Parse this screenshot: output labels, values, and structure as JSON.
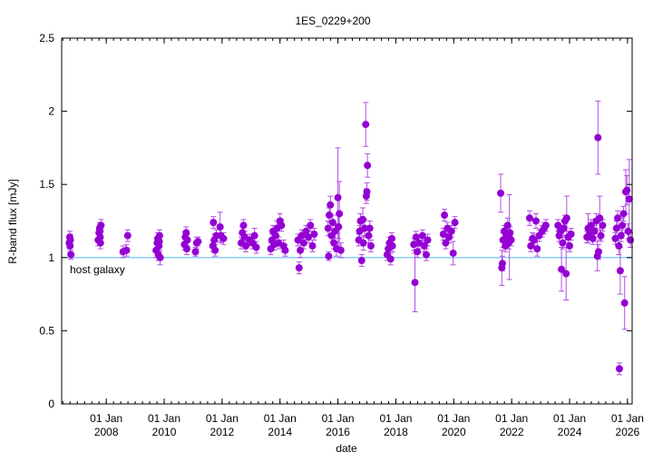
{
  "chart_data": {
    "type": "scatter",
    "title": "1ES_0229+200",
    "xlabel": "date",
    "ylabel": "R-band flux [mJy]",
    "xlim": [
      2006.46,
      2026.16
    ],
    "ylim": [
      0,
      2.5
    ],
    "yticks": [
      0,
      0.5,
      1,
      1.5,
      2,
      2.5
    ],
    "ytick_labels": [
      "0",
      "0.5",
      "1",
      "1.5",
      "2",
      "2.5"
    ],
    "xticks": [
      2008,
      2010,
      2012,
      2014,
      2016,
      2018,
      2020,
      2022,
      2024,
      2026
    ],
    "xtick_labels_top": [
      "01 Jan",
      "01 Jan",
      "01 Jan",
      "01 Jan",
      "01 Jan",
      "01 Jan",
      "01 Jan",
      "01 Jan",
      "01 Jan",
      "01 Jan"
    ],
    "xtick_labels_bottom": [
      "2008",
      "2010",
      "2012",
      "2014",
      "2016",
      "2018",
      "2020",
      "2022",
      "2024",
      "2026"
    ],
    "grid": false,
    "reference_line": {
      "label": "host galaxy",
      "value": 1.0,
      "color": "#87cefa"
    },
    "marker_color": "#9400d3",
    "errorbar_color": "#b44ee6",
    "points_note": "[year, flux_mJy, error_mJy]",
    "points": [
      [
        2006.72,
        1.1,
        0.04
      ],
      [
        2006.74,
        1.14,
        0.04
      ],
      [
        2006.76,
        1.12,
        0.04
      ],
      [
        2006.75,
        1.08,
        0.04
      ],
      [
        2006.78,
        1.02,
        0.03
      ],
      [
        2007.72,
        1.12,
        0.04
      ],
      [
        2007.75,
        1.17,
        0.04
      ],
      [
        2007.77,
        1.2,
        0.04
      ],
      [
        2007.79,
        1.14,
        0.04
      ],
      [
        2007.8,
        1.1,
        0.04
      ],
      [
        2007.82,
        1.22,
        0.04
      ],
      [
        2007.78,
        1.18,
        0.04
      ],
      [
        2008.58,
        1.04,
        0.04
      ],
      [
        2008.7,
        1.05,
        0.04
      ],
      [
        2008.74,
        1.15,
        0.04
      ],
      [
        2009.72,
        1.05,
        0.05
      ],
      [
        2009.76,
        1.1,
        0.04
      ],
      [
        2009.78,
        1.13,
        0.04
      ],
      [
        2009.8,
        1.02,
        0.04
      ],
      [
        2009.82,
        1.08,
        0.04
      ],
      [
        2009.84,
        1.15,
        0.04
      ],
      [
        2009.86,
        1.0,
        0.05
      ],
      [
        2009.83,
        1.11,
        0.04
      ],
      [
        2010.7,
        1.09,
        0.04
      ],
      [
        2010.73,
        1.14,
        0.04
      ],
      [
        2010.76,
        1.17,
        0.04
      ],
      [
        2010.78,
        1.06,
        0.04
      ],
      [
        2010.8,
        1.12,
        0.04
      ],
      [
        2011.08,
        1.04,
        0.03
      ],
      [
        2011.12,
        1.1,
        0.04
      ],
      [
        2011.17,
        1.11,
        0.03
      ],
      [
        2011.68,
        1.08,
        0.04
      ],
      [
        2011.7,
        1.24,
        0.04
      ],
      [
        2011.73,
        1.12,
        0.04
      ],
      [
        2011.76,
        1.05,
        0.04
      ],
      [
        2011.8,
        1.15,
        0.04
      ],
      [
        2011.93,
        1.21,
        0.1
      ],
      [
        2011.96,
        1.15,
        0.05
      ],
      [
        2012.05,
        1.13,
        0.04
      ],
      [
        2012.66,
        1.1,
        0.04
      ],
      [
        2012.7,
        1.17,
        0.04
      ],
      [
        2012.74,
        1.22,
        0.04
      ],
      [
        2012.78,
        1.14,
        0.04
      ],
      [
        2012.82,
        1.08,
        0.04
      ],
      [
        2012.95,
        1.12,
        0.04
      ],
      [
        2013.05,
        1.1,
        0.04
      ],
      [
        2013.12,
        1.15,
        0.05
      ],
      [
        2013.18,
        1.07,
        0.04
      ],
      [
        2013.68,
        1.06,
        0.04
      ],
      [
        2013.72,
        1.12,
        0.04
      ],
      [
        2013.76,
        1.18,
        0.04
      ],
      [
        2013.8,
        1.09,
        0.04
      ],
      [
        2013.85,
        1.15,
        0.04
      ],
      [
        2013.9,
        1.2,
        0.05
      ],
      [
        2013.95,
        1.1,
        0.04
      ],
      [
        2014.0,
        1.25,
        0.05
      ],
      [
        2014.05,
        1.22,
        0.04
      ],
      [
        2014.12,
        1.08,
        0.04
      ],
      [
        2014.18,
        1.05,
        0.04
      ],
      [
        2014.62,
        1.12,
        0.04
      ],
      [
        2014.66,
        0.93,
        0.04
      ],
      [
        2014.7,
        1.05,
        0.05
      ],
      [
        2014.75,
        1.15,
        0.04
      ],
      [
        2014.82,
        1.1,
        0.04
      ],
      [
        2014.9,
        1.18,
        0.04
      ],
      [
        2014.98,
        1.14,
        0.04
      ],
      [
        2015.05,
        1.22,
        0.04
      ],
      [
        2015.12,
        1.08,
        0.04
      ],
      [
        2015.18,
        1.16,
        0.04
      ],
      [
        2015.66,
        1.2,
        0.05
      ],
      [
        2015.68,
        1.01,
        0.03
      ],
      [
        2015.7,
        1.29,
        0.05
      ],
      [
        2015.74,
        1.36,
        0.06
      ],
      [
        2015.78,
        1.15,
        0.04
      ],
      [
        2015.82,
        1.24,
        0.05
      ],
      [
        2015.86,
        1.1,
        0.04
      ],
      [
        2015.9,
        1.18,
        0.05
      ],
      [
        2015.95,
        1.06,
        0.05
      ],
      [
        2016.0,
        1.41,
        0.34
      ],
      [
        2016.02,
        1.21,
        0.08
      ],
      [
        2016.05,
        1.3,
        0.22
      ],
      [
        2016.1,
        1.05,
        0.05
      ],
      [
        2016.72,
        1.12,
        0.04
      ],
      [
        2016.75,
        1.18,
        0.04
      ],
      [
        2016.78,
        1.25,
        0.05
      ],
      [
        2016.82,
        0.98,
        0.04
      ],
      [
        2016.86,
        1.26,
        0.08
      ],
      [
        2016.88,
        1.1,
        0.05
      ],
      [
        2016.92,
        1.2,
        0.06
      ],
      [
        2016.96,
        1.91,
        0.15
      ],
      [
        2016.98,
        1.42,
        0.05
      ],
      [
        2017.0,
        1.45,
        0.06
      ],
      [
        2017.02,
        1.63,
        0.08
      ],
      [
        2017.06,
        1.15,
        0.05
      ],
      [
        2017.1,
        1.2,
        0.05
      ],
      [
        2017.14,
        1.08,
        0.04
      ],
      [
        2017.7,
        1.02,
        0.04
      ],
      [
        2017.74,
        1.06,
        0.04
      ],
      [
        2017.78,
        1.1,
        0.04
      ],
      [
        2017.82,
        0.99,
        0.04
      ],
      [
        2017.86,
        1.13,
        0.04
      ],
      [
        2017.88,
        1.08,
        0.04
      ],
      [
        2018.62,
        1.09,
        0.04
      ],
      [
        2018.66,
        0.83,
        0.2
      ],
      [
        2018.7,
        1.14,
        0.04
      ],
      [
        2018.74,
        1.04,
        0.04
      ],
      [
        2018.8,
        1.1,
        0.04
      ],
      [
        2018.92,
        1.15,
        0.04
      ],
      [
        2018.98,
        1.08,
        0.04
      ],
      [
        2019.05,
        1.02,
        0.04
      ],
      [
        2019.1,
        1.12,
        0.04
      ],
      [
        2019.64,
        1.16,
        0.04
      ],
      [
        2019.68,
        1.29,
        0.04
      ],
      [
        2019.72,
        1.1,
        0.04
      ],
      [
        2019.78,
        1.2,
        0.04
      ],
      [
        2019.84,
        1.14,
        0.04
      ],
      [
        2019.92,
        1.18,
        0.04
      ],
      [
        2019.98,
        1.03,
        0.08
      ],
      [
        2020.04,
        1.24,
        0.04
      ],
      [
        2021.62,
        1.44,
        0.13
      ],
      [
        2021.66,
        0.93,
        0.12
      ],
      [
        2021.68,
        0.96,
        0.05
      ],
      [
        2021.7,
        1.12,
        0.05
      ],
      [
        2021.74,
        1.18,
        0.04
      ],
      [
        2021.78,
        1.08,
        0.04
      ],
      [
        2021.82,
        1.15,
        0.04
      ],
      [
        2021.86,
        1.22,
        0.05
      ],
      [
        2021.9,
        1.1,
        0.04
      ],
      [
        2021.94,
        1.17,
        0.04
      ],
      [
        2021.98,
        1.12,
        0.04
      ],
      [
        2021.92,
        1.14,
        0.29
      ],
      [
        2022.62,
        1.27,
        0.05
      ],
      [
        2022.66,
        1.08,
        0.04
      ],
      [
        2022.72,
        1.13,
        0.04
      ],
      [
        2022.78,
        1.12,
        0.04
      ],
      [
        2022.84,
        1.25,
        0.05
      ],
      [
        2022.88,
        1.06,
        0.05
      ],
      [
        2022.95,
        1.15,
        0.04
      ],
      [
        2023.05,
        1.18,
        0.04
      ],
      [
        2023.12,
        1.2,
        0.04
      ],
      [
        2023.18,
        1.22,
        0.04
      ],
      [
        2023.6,
        1.22,
        0.04
      ],
      [
        2023.64,
        1.15,
        0.04
      ],
      [
        2023.68,
        1.18,
        0.04
      ],
      [
        2023.72,
        0.92,
        0.15
      ],
      [
        2023.76,
        1.1,
        0.04
      ],
      [
        2023.8,
        1.2,
        0.05
      ],
      [
        2023.84,
        1.25,
        0.04
      ],
      [
        2023.88,
        0.89,
        0.18
      ],
      [
        2023.9,
        1.27,
        0.15
      ],
      [
        2023.95,
        1.14,
        0.04
      ],
      [
        2024.0,
        1.08,
        0.04
      ],
      [
        2024.05,
        1.16,
        0.04
      ],
      [
        2024.6,
        1.14,
        0.04
      ],
      [
        2024.64,
        1.2,
        0.1
      ],
      [
        2024.68,
        1.16,
        0.04
      ],
      [
        2024.74,
        1.22,
        0.04
      ],
      [
        2024.8,
        1.13,
        0.04
      ],
      [
        2024.86,
        1.18,
        0.04
      ],
      [
        2024.92,
        1.25,
        0.05
      ],
      [
        2024.96,
        1.01,
        0.1
      ],
      [
        2024.98,
        1.82,
        0.25
      ],
      [
        2025.0,
        1.04,
        0.05
      ],
      [
        2025.04,
        1.27,
        0.15
      ],
      [
        2025.08,
        1.15,
        0.04
      ],
      [
        2025.14,
        1.22,
        0.04
      ],
      [
        2025.58,
        1.13,
        0.04
      ],
      [
        2025.62,
        1.2,
        0.05
      ],
      [
        2025.66,
        1.27,
        0.05
      ],
      [
        2025.7,
        1.08,
        0.06
      ],
      [
        2025.72,
        0.24,
        0.04
      ],
      [
        2025.75,
        0.91,
        0.16
      ],
      [
        2025.78,
        1.15,
        0.04
      ],
      [
        2025.82,
        1.22,
        0.05
      ],
      [
        2025.86,
        1.3,
        0.05
      ],
      [
        2025.9,
        0.69,
        0.18
      ],
      [
        2025.94,
        1.45,
        0.15
      ],
      [
        2025.98,
        1.46,
        0.1
      ],
      [
        2026.02,
        1.18,
        0.05
      ],
      [
        2026.06,
        1.4,
        0.27
      ],
      [
        2026.1,
        1.12,
        0.05
      ]
    ]
  }
}
